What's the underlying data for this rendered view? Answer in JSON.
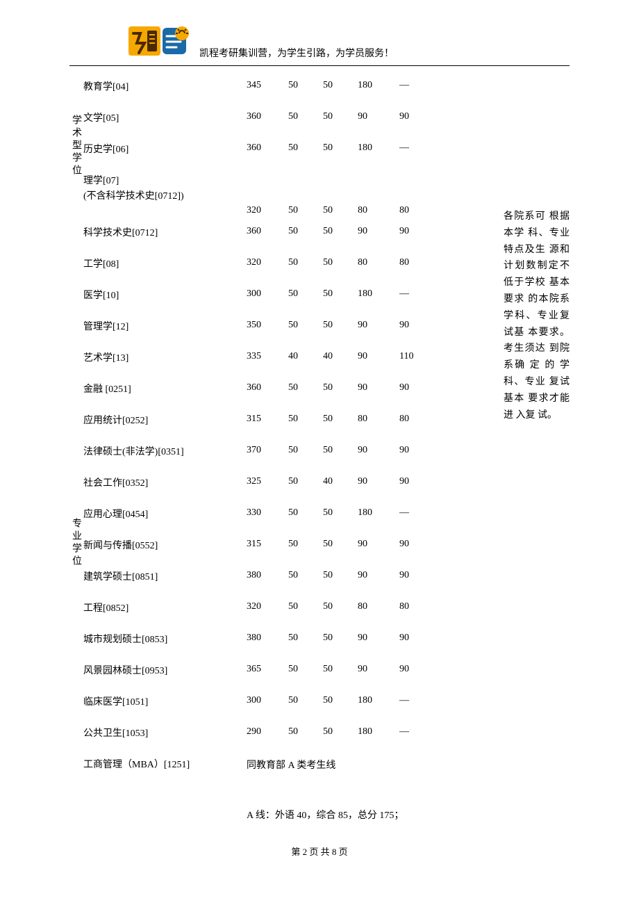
{
  "header": {
    "tagline": "凯程考研集训营，为学生引路，为学员服务！"
  },
  "categories": {
    "academic": "学术型学位",
    "professional": "专业学位"
  },
  "academic_rows": [
    {
      "label": "教育学[04]",
      "v": [
        "345",
        "50",
        "50",
        "180",
        "—"
      ]
    },
    {
      "label": "文学[05]",
      "v": [
        "360",
        "50",
        "50",
        "90",
        "90"
      ]
    },
    {
      "label": "历史学[06]",
      "v": [
        "360",
        "50",
        "50",
        "180",
        "—"
      ]
    },
    {
      "label": "理学[07]\n(不含科学技术史[0712])",
      "v": [
        "",
        "",
        "",
        "",
        ""
      ]
    },
    {
      "label": "",
      "v": [
        "320",
        "50",
        "50",
        "80",
        "80"
      ]
    },
    {
      "label": "科学技术史[0712]",
      "v": [
        "360",
        "50",
        "50",
        "90",
        "90"
      ]
    },
    {
      "label": "工学[08]",
      "v": [
        "320",
        "50",
        "50",
        "80",
        "80"
      ]
    },
    {
      "label": "医学[10]",
      "v": [
        "300",
        "50",
        "50",
        "180",
        "—"
      ]
    },
    {
      "label": "管理学[12]",
      "v": [
        "350",
        "50",
        "50",
        "90",
        "90"
      ]
    },
    {
      "label": "艺术学[13]",
      "v": [
        "335",
        "40",
        "40",
        "90",
        "110"
      ]
    }
  ],
  "professional_rows": [
    {
      "label": "金融 [0251]",
      "v": [
        "360",
        "50",
        "50",
        "90",
        "90"
      ]
    },
    {
      "label": "应用统计[0252]",
      "v": [
        "315",
        "50",
        "50",
        "80",
        "80"
      ]
    },
    {
      "label": "法律硕士(非法学)[0351]",
      "v": [
        "370",
        "50",
        "50",
        "90",
        "90"
      ]
    },
    {
      "label": "社会工作[0352]",
      "v": [
        "325",
        "50",
        "40",
        "90",
        "90"
      ]
    },
    {
      "label": "应用心理[0454]",
      "v": [
        "330",
        "50",
        "50",
        "180",
        "—"
      ]
    },
    {
      "label": "新闻与传播[0552]",
      "v": [
        "315",
        "50",
        "50",
        "90",
        "90"
      ]
    },
    {
      "label": "建筑学硕士[0851]",
      "v": [
        "380",
        "50",
        "50",
        "90",
        "90"
      ]
    },
    {
      "label": "工程[0852]",
      "v": [
        "320",
        "50",
        "50",
        "80",
        "80"
      ]
    },
    {
      "label": "城市规划硕士[0853]",
      "v": [
        "380",
        "50",
        "50",
        "90",
        "90"
      ]
    },
    {
      "label": "风景园林硕士[0953]",
      "v": [
        "365",
        "50",
        "50",
        "90",
        "90"
      ]
    },
    {
      "label": "临床医学[1051]",
      "v": [
        "300",
        "50",
        "50",
        "180",
        "—"
      ]
    },
    {
      "label": "公共卫生[1053]",
      "v": [
        "290",
        "50",
        "50",
        "180",
        "—"
      ]
    }
  ],
  "mba": {
    "label": "工商管理（MBA）[1251]",
    "note1": "同教育部 A 类考生线",
    "note2": "A 线：外语 40，综合 85，总分 175；"
  },
  "side_note": "各院系可 根据本学 科、专业 特点及生 源和计划数制定不 低于学校 基本要求 的本院系 学科、专业复试基 本要求。 考生须达 到院系确 定 的 学科、专业 复试基本 要求才能 进 入复 试。",
  "footer": "第 2 页 共 8 页"
}
